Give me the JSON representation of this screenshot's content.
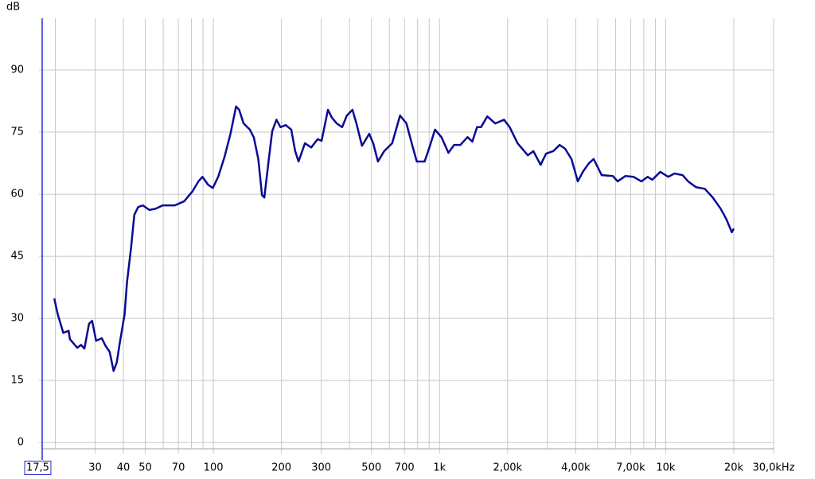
{
  "chart_data": {
    "type": "line",
    "y_label": "dB",
    "log_x": true,
    "grid": true,
    "color": "#0a0a96",
    "xlim": [
      17.5,
      30000
    ],
    "ylim": [
      -1.5,
      102.5
    ],
    "xticks": [
      {
        "value": 17.5,
        "label": "17,5"
      },
      30,
      40,
      50,
      70,
      100,
      200,
      300,
      500,
      700,
      {
        "value": 1000,
        "label": "1k"
      },
      {
        "value": 2000,
        "label": "2,00k"
      },
      {
        "value": 4000,
        "label": "4,00k"
      },
      {
        "value": 7000,
        "label": "7,00k"
      },
      {
        "value": 10000,
        "label": "10k"
      },
      {
        "value": 20000,
        "label": "20k"
      },
      {
        "value": 30000,
        "label": "30,0kHz"
      }
    ],
    "xminor": [
      20,
      60,
      80,
      90,
      400,
      600,
      800,
      900,
      3000,
      5000,
      6000,
      8000,
      9000
    ],
    "yticks": [
      0,
      15,
      30,
      45,
      60,
      75,
      90
    ],
    "x": [
      19.8,
      20.5,
      21.7,
      22.9,
      23.2,
      25,
      26,
      26.9,
      28.2,
      29.1,
      30.3,
      32.1,
      33.4,
      34.8,
      36.2,
      37.4,
      38.6,
      40.5,
      41.5,
      43.3,
      44.7,
      46.5,
      48.8,
      52.1,
      55.6,
      59.7,
      67.5,
      74.3,
      80.6,
      85.9,
      89.5,
      94.7,
      99.4,
      105,
      112,
      119,
      126,
      130,
      136,
      145,
      151,
      158,
      164,
      168,
      175,
      182,
      190,
      198,
      209,
      221,
      230,
      238,
      254,
      271,
      289,
      301,
      321,
      334,
      351,
      371,
      389,
      412,
      429,
      454,
      489,
      509,
      534,
      569,
      617,
      669,
      714,
      750,
      793,
      859,
      902,
      955,
      1019,
      1095,
      1159,
      1236,
      1330,
      1396,
      1465,
      1525,
      1626,
      1764,
      1929,
      2042,
      2213,
      2457,
      2600,
      2798,
      2959,
      3181,
      3395,
      3590,
      3831,
      4086,
      4324,
      4580,
      4804,
      5212,
      5837,
      6128,
      6640,
      7203,
      7803,
      8319,
      8728,
      9461,
      10255,
      10940,
      11880,
      12565,
      13620,
      14895,
      16145,
      17500,
      18530,
      19600,
      20000
    ],
    "values": [
      34.8,
      31,
      26.5,
      27,
      25,
      22.9,
      23.6,
      22.7,
      28.7,
      29.4,
      24.6,
      25.2,
      23.3,
      21.9,
      17.3,
      19.4,
      24.2,
      31,
      38.7,
      47.3,
      55,
      56.9,
      57.3,
      56.2,
      56.5,
      57.3,
      57.3,
      58.3,
      60.6,
      63.1,
      64.2,
      62.3,
      61.5,
      64.2,
      69,
      74.6,
      81.2,
      80.4,
      77.1,
      75.6,
      73.7,
      68.5,
      59.8,
      59.2,
      67.5,
      75.2,
      78,
      76.2,
      76.7,
      75.6,
      70.4,
      67.9,
      72.3,
      71.3,
      73.3,
      72.9,
      80.4,
      78.5,
      77.1,
      76.2,
      79,
      80.4,
      77.1,
      71.7,
      74.6,
      72.3,
      67.9,
      70.4,
      72.3,
      79,
      77.1,
      72.7,
      67.9,
      67.9,
      71.3,
      75.6,
      73.8,
      70,
      71.9,
      71.9,
      73.8,
      72.7,
      76.2,
      76.2,
      78.8,
      77.1,
      78,
      76.2,
      72.3,
      69.4,
      70.4,
      67.1,
      69.8,
      70.4,
      71.9,
      71,
      68.5,
      63.1,
      65.6,
      67.5,
      68.5,
      64.6,
      64.4,
      63.1,
      64.4,
      64.2,
      63.1,
      64.2,
      63.5,
      65.4,
      64.2,
      65,
      64.6,
      63.1,
      61.7,
      61.3,
      59.2,
      56.5,
      54,
      50.8,
      51.7
    ]
  }
}
